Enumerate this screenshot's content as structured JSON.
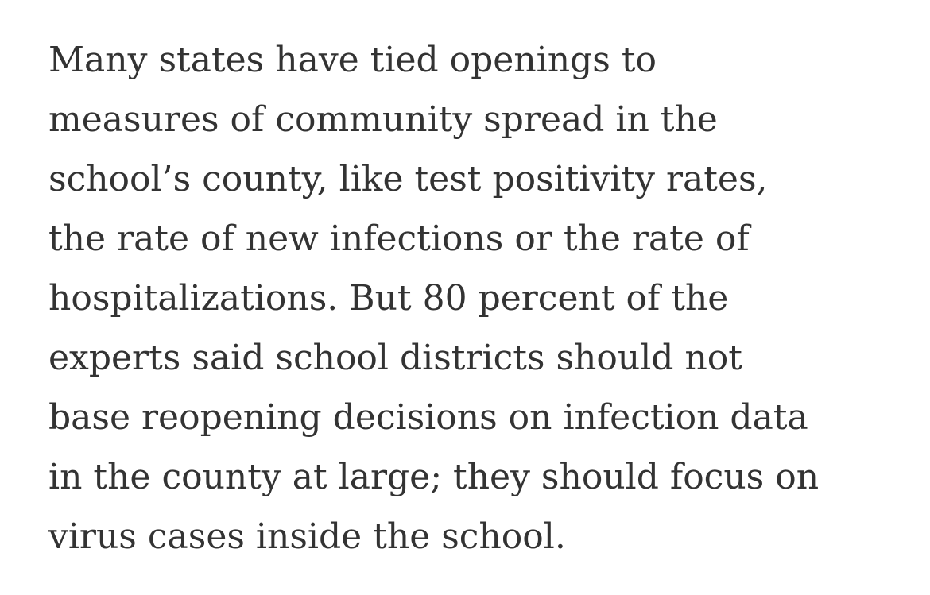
{
  "article": {
    "lines": [
      "Many states have tied openings to",
      "measures of community spread in the",
      "school’s county, like test positivity rates,",
      "the rate of new infections or the rate of",
      "hospitalizations. But 80 percent of the",
      "experts said school districts should not",
      "base reopening decisions on infection data",
      "in the county at large; they should focus on",
      "virus cases inside the school."
    ]
  }
}
